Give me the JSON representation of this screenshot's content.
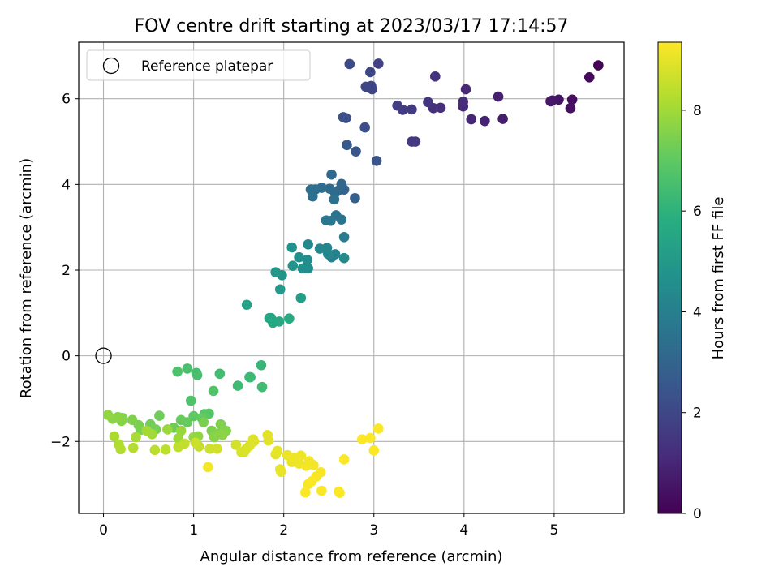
{
  "chart_data": {
    "type": "scatter",
    "title": "FOV centre drift starting at 2023/03/17 17:14:57",
    "xlabel": "Angular distance from reference (arcmin)",
    "ylabel": "Rotation from reference (arcmin)",
    "xlim": [
      -0.275,
      5.775
    ],
    "ylim": [
      -3.68,
      7.32
    ],
    "xticks": [
      "0",
      "1",
      "2",
      "3",
      "4",
      "5"
    ],
    "yticks": [
      "−2",
      "0",
      "2",
      "4",
      "6"
    ],
    "grid": true,
    "legend": {
      "position": "upper left",
      "entries": [
        "Reference platepar"
      ]
    },
    "reference_point": {
      "x": 0.0,
      "y": 0.0,
      "label": "Reference platepar",
      "marker": "open-circle"
    },
    "colorbar": {
      "label": "Hours from first FF file",
      "colormap": "viridis",
      "range": [
        0,
        9.35
      ],
      "ticks": [
        "0",
        "2",
        "4",
        "6",
        "8"
      ]
    },
    "points": [
      [
        5.49,
        6.78,
        0.1
      ],
      [
        5.39,
        6.5,
        0.2
      ],
      [
        5.2,
        5.98,
        0.35
      ],
      [
        5.18,
        5.78,
        0.4
      ],
      [
        5.05,
        5.98,
        0.5
      ],
      [
        4.98,
        5.96,
        0.55
      ],
      [
        4.96,
        5.94,
        0.6
      ],
      [
        4.43,
        5.53,
        0.75
      ],
      [
        4.38,
        6.05,
        0.8
      ],
      [
        4.23,
        5.48,
        0.9
      ],
      [
        4.08,
        5.52,
        1.0
      ],
      [
        4.02,
        6.22,
        1.05
      ],
      [
        3.99,
        5.82,
        1.1
      ],
      [
        3.99,
        5.93,
        1.15
      ],
      [
        3.74,
        5.79,
        1.25
      ],
      [
        3.66,
        5.78,
        1.3
      ],
      [
        3.68,
        6.52,
        1.35
      ],
      [
        3.6,
        5.92,
        1.4
      ],
      [
        3.46,
        5.0,
        1.5
      ],
      [
        3.42,
        5.0,
        1.55
      ],
      [
        3.42,
        5.75,
        1.6
      ],
      [
        3.32,
        5.74,
        1.65
      ],
      [
        3.26,
        5.84,
        1.7
      ],
      [
        3.05,
        6.82,
        1.8
      ],
      [
        2.97,
        6.3,
        1.85
      ],
      [
        2.98,
        6.22,
        1.9
      ],
      [
        2.91,
        6.28,
        1.95
      ],
      [
        2.96,
        6.62,
        2.0
      ],
      [
        2.73,
        6.81,
        2.05
      ],
      [
        2.9,
        5.33,
        2.2
      ],
      [
        2.69,
        5.55,
        2.25
      ],
      [
        2.66,
        5.57,
        2.3
      ],
      [
        3.03,
        4.55,
        2.45
      ],
      [
        2.8,
        4.77,
        2.5
      ],
      [
        2.7,
        4.92,
        2.6
      ],
      [
        2.79,
        3.68,
        2.9
      ],
      [
        2.67,
        3.88,
        3.0
      ],
      [
        2.64,
        4.01,
        3.05
      ],
      [
        2.6,
        3.85,
        3.1
      ],
      [
        2.53,
        4.23,
        3.15
      ],
      [
        2.57,
        3.8,
        3.2
      ],
      [
        2.51,
        3.9,
        3.25
      ],
      [
        2.42,
        3.92,
        3.3
      ],
      [
        2.35,
        3.88,
        3.35
      ],
      [
        2.3,
        3.88,
        3.4
      ],
      [
        2.32,
        3.72,
        3.45
      ],
      [
        2.56,
        3.65,
        3.5
      ],
      [
        2.64,
        3.18,
        3.55
      ],
      [
        2.58,
        3.28,
        3.6
      ],
      [
        2.52,
        3.15,
        3.65
      ],
      [
        2.47,
        3.16,
        3.7
      ],
      [
        2.67,
        2.77,
        3.85
      ],
      [
        2.57,
        2.37,
        4.1
      ],
      [
        2.53,
        2.3,
        4.15
      ],
      [
        2.48,
        2.52,
        4.2
      ],
      [
        2.49,
        2.38,
        4.25
      ],
      [
        2.4,
        2.5,
        4.3
      ],
      [
        2.27,
        2.6,
        4.35
      ],
      [
        2.67,
        2.28,
        4.4
      ],
      [
        2.26,
        2.24,
        4.5
      ],
      [
        2.27,
        2.04,
        4.55
      ],
      [
        2.21,
        2.04,
        4.6
      ],
      [
        2.17,
        2.3,
        4.65
      ],
      [
        2.09,
        2.53,
        4.7
      ],
      [
        2.1,
        2.1,
        4.8
      ],
      [
        1.98,
        1.88,
        4.85
      ],
      [
        1.91,
        1.95,
        4.9
      ],
      [
        1.96,
        1.55,
        5.0
      ],
      [
        2.19,
        1.35,
        5.15
      ],
      [
        1.59,
        1.19,
        5.3
      ],
      [
        1.86,
        0.88,
        5.45
      ],
      [
        1.84,
        0.88,
        5.5
      ],
      [
        1.88,
        0.77,
        5.55
      ],
      [
        1.95,
        0.8,
        5.6
      ],
      [
        2.06,
        0.87,
        5.65
      ],
      [
        1.75,
        -0.22,
        6.2
      ],
      [
        1.63,
        -0.5,
        6.25
      ],
      [
        1.62,
        -0.5,
        6.3
      ],
      [
        1.49,
        -0.7,
        6.35
      ],
      [
        1.76,
        -0.73,
        6.4
      ],
      [
        1.29,
        -0.42,
        6.45
      ],
      [
        1.03,
        -0.4,
        6.5
      ],
      [
        1.04,
        -0.45,
        6.55
      ],
      [
        0.93,
        -0.3,
        6.6
      ],
      [
        0.82,
        -0.37,
        6.65
      ],
      [
        0.97,
        -1.05,
        6.7
      ],
      [
        1.22,
        -0.82,
        6.75
      ],
      [
        1.17,
        -1.35,
        6.85
      ],
      [
        1.12,
        -1.36,
        6.9
      ],
      [
        1.0,
        -1.41,
        7.0
      ],
      [
        1.09,
        -1.45,
        7.05
      ],
      [
        0.93,
        -1.55,
        7.1
      ],
      [
        0.86,
        -1.5,
        7.15
      ],
      [
        0.78,
        -1.68,
        7.2
      ],
      [
        0.62,
        -1.4,
        7.25
      ],
      [
        0.52,
        -1.6,
        7.3
      ],
      [
        0.58,
        -1.72,
        7.35
      ],
      [
        0.39,
        -1.62,
        7.4
      ],
      [
        0.41,
        -1.73,
        7.45
      ],
      [
        0.32,
        -1.5,
        7.5
      ],
      [
        0.21,
        -1.45,
        7.55
      ],
      [
        0.2,
        -1.52,
        7.6
      ],
      [
        0.16,
        -1.43,
        7.65
      ],
      [
        0.1,
        -1.47,
        7.7
      ],
      [
        0.05,
        -1.38,
        7.75
      ],
      [
        1.11,
        -1.55,
        7.4
      ],
      [
        1.2,
        -1.75,
        7.45
      ],
      [
        1.3,
        -1.6,
        7.5
      ],
      [
        1.36,
        -1.75,
        7.55
      ],
      [
        1.27,
        -1.82,
        7.6
      ],
      [
        1.23,
        -1.9,
        7.65
      ],
      [
        1.32,
        -1.85,
        7.7
      ],
      [
        1.05,
        -1.88,
        7.75
      ],
      [
        1.0,
        -1.9,
        7.8
      ],
      [
        0.86,
        -1.75,
        7.85
      ],
      [
        0.71,
        -1.72,
        7.9
      ],
      [
        0.83,
        -1.93,
        7.95
      ],
      [
        0.54,
        -1.83,
        8.0
      ],
      [
        0.48,
        -1.75,
        8.05
      ],
      [
        0.36,
        -1.9,
        8.1
      ],
      [
        0.12,
        -1.88,
        8.15
      ],
      [
        0.17,
        -2.07,
        8.2
      ],
      [
        0.19,
        -2.18,
        8.25
      ],
      [
        0.33,
        -2.15,
        8.3
      ],
      [
        0.57,
        -2.2,
        8.35
      ],
      [
        0.69,
        -2.19,
        8.4
      ],
      [
        0.83,
        -2.13,
        8.45
      ],
      [
        0.9,
        -2.05,
        8.5
      ],
      [
        1.06,
        -2.12,
        8.55
      ],
      [
        1.02,
        -2.03,
        8.6
      ],
      [
        1.18,
        -2.17,
        8.65
      ],
      [
        1.26,
        -2.17,
        8.7
      ],
      [
        1.47,
        -2.08,
        8.75
      ],
      [
        1.53,
        -2.25,
        8.8
      ],
      [
        1.56,
        -2.25,
        8.8
      ],
      [
        1.58,
        -2.18,
        8.85
      ],
      [
        1.62,
        -2.1,
        8.85
      ],
      [
        1.67,
        -2.0,
        8.9
      ],
      [
        1.66,
        -1.95,
        8.9
      ],
      [
        1.82,
        -1.85,
        8.95
      ],
      [
        1.83,
        -1.98,
        8.95
      ],
      [
        1.93,
        -2.22,
        9.0
      ],
      [
        1.91,
        -2.3,
        9.0
      ],
      [
        1.96,
        -2.65,
        9.05
      ],
      [
        1.97,
        -2.71,
        9.05
      ],
      [
        2.04,
        -2.32,
        9.1
      ],
      [
        2.09,
        -2.48,
        9.1
      ],
      [
        2.12,
        -2.38,
        9.15
      ],
      [
        2.17,
        -2.52,
        9.15
      ],
      [
        2.19,
        -2.33,
        9.15
      ],
      [
        2.25,
        -2.57,
        9.2
      ],
      [
        2.28,
        -2.46,
        9.2
      ],
      [
        2.33,
        -2.55,
        9.2
      ],
      [
        2.36,
        -2.82,
        9.25
      ],
      [
        2.41,
        -2.72,
        9.25
      ],
      [
        2.27,
        -3.0,
        9.25
      ],
      [
        2.31,
        -2.93,
        9.3
      ],
      [
        2.24,
        -3.19,
        9.3
      ],
      [
        2.42,
        -3.15,
        9.3
      ],
      [
        2.61,
        -3.17,
        9.3
      ],
      [
        2.62,
        -3.2,
        9.3
      ],
      [
        2.67,
        -2.42,
        9.3
      ],
      [
        2.87,
        -1.95,
        9.32
      ],
      [
        2.96,
        -1.92,
        9.32
      ],
      [
        3.05,
        -1.7,
        9.33
      ],
      [
        3.0,
        -2.21,
        9.33
      ],
      [
        1.16,
        -2.6,
        9.2
      ]
    ]
  }
}
